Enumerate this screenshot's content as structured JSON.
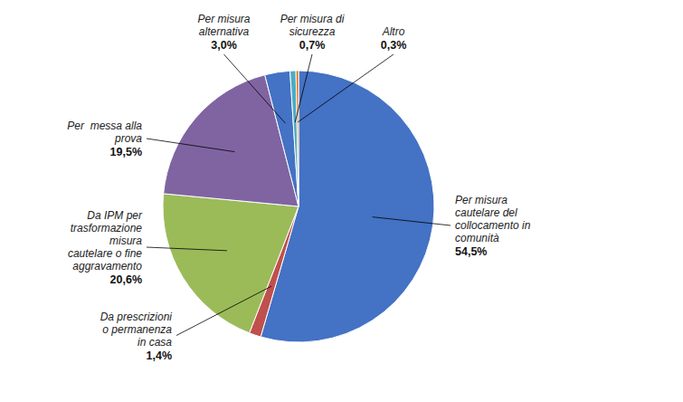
{
  "chart_data": {
    "type": "pie",
    "categories": [
      "Per misura\ncautelare del\ncollocamento in\ncomunità",
      "Da prescrizioni\no permanenza\nin casa",
      "Da IPM per\ntrasformazione\nmisura\ncautelare o fine\naggravamento",
      "Per  messa alla\nprova",
      "Per misura\nalternativa",
      "Per misura di\nsicurezza",
      "Altro"
    ],
    "values": [
      54.5,
      1.4,
      20.6,
      19.5,
      3.0,
      0.7,
      0.3
    ],
    "value_labels": [
      "54,5%",
      "1,4%",
      "20,6%",
      "19,5%",
      "3,0%",
      "0,7%",
      "0,3%"
    ],
    "colors": [
      "#4472C4",
      "#C0504D",
      "#9BBB59",
      "#8064A2",
      "#4472C4",
      "#4BACC6",
      "#E36C09"
    ],
    "data_labels": true
  }
}
